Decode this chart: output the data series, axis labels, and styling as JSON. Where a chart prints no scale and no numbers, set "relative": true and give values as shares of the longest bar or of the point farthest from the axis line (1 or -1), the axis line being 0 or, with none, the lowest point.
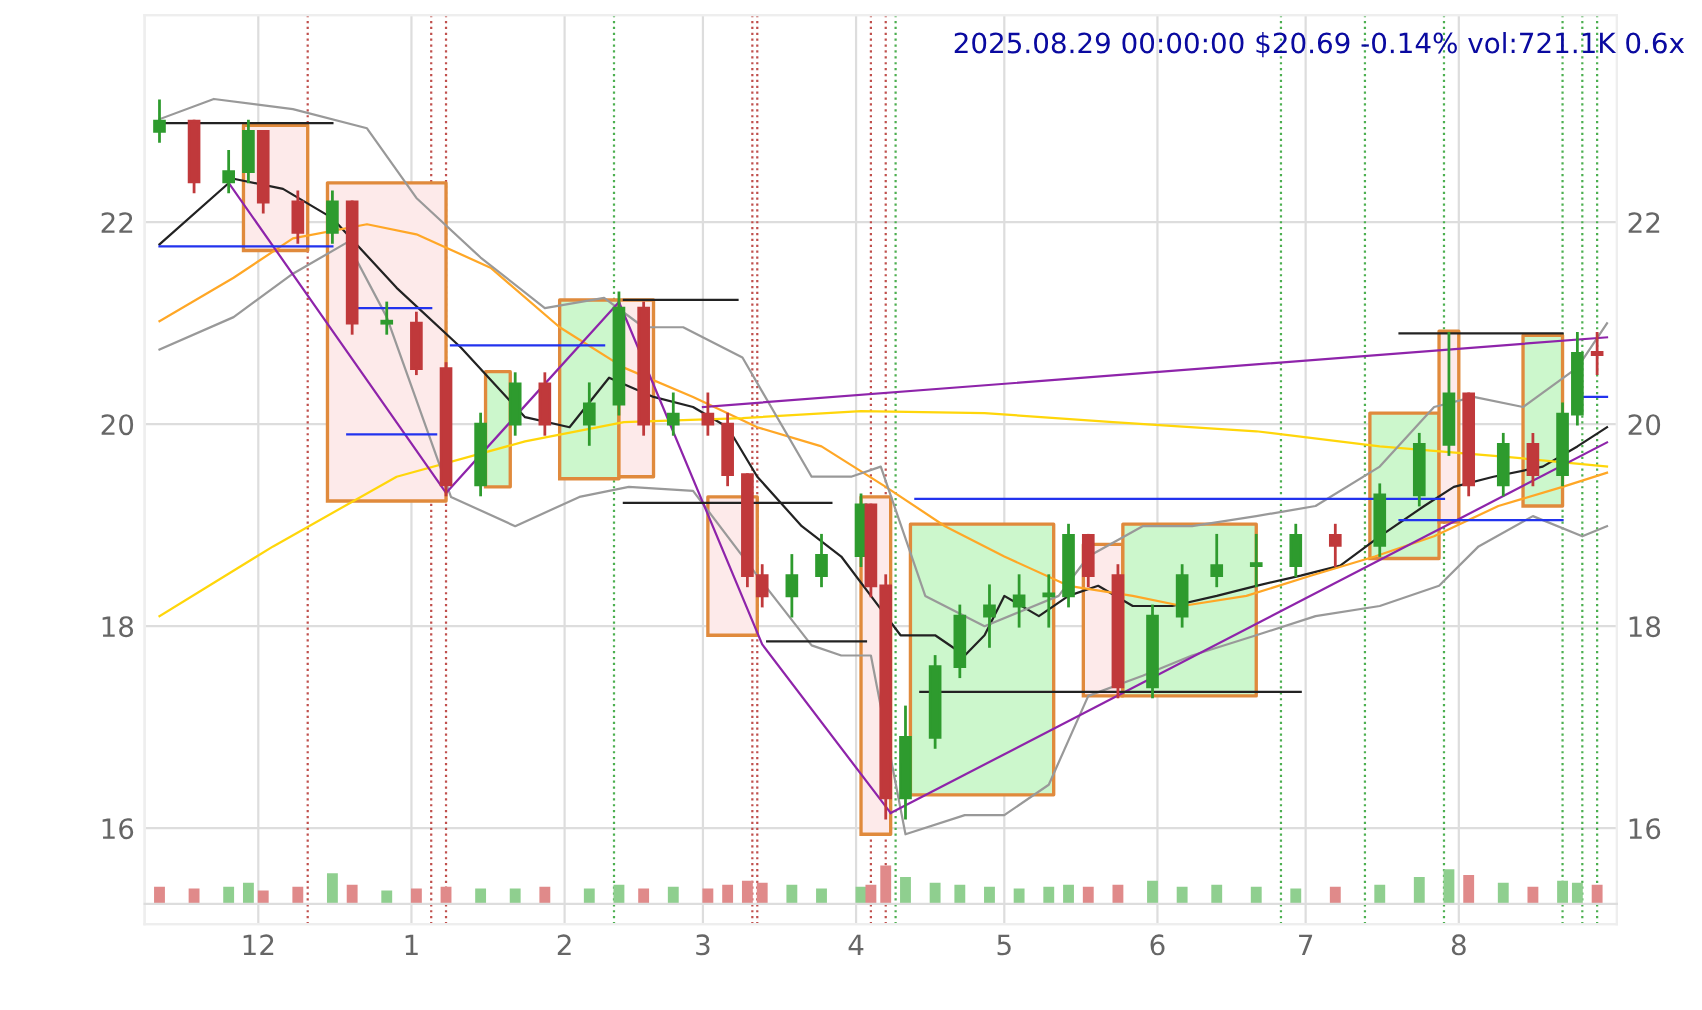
{
  "chart_data": [
    {
      "type": "candlestick",
      "title": "2025.08.29 00:00:00 $20.69 -0.14% vol:721.1K 0.6x",
      "x": [
        "2024-11-11",
        "2024-11-18",
        "2024-11-25",
        "2024-11-29",
        "2024-12-02",
        "2024-12-09",
        "2024-12-16",
        "2024-12-20",
        "2024-12-27",
        "2025-01-02",
        "2025-01-08",
        "2025-01-15",
        "2025-01-22",
        "2025-01-28",
        "2025-02-06",
        "2025-02-12",
        "2025-02-17",
        "2025-02-23",
        "2025-03-02",
        "2025-03-06",
        "2025-03-10",
        "2025-03-13",
        "2025-03-19",
        "2025-03-25",
        "2025-04-02",
        "2025-04-04",
        "2025-04-07",
        "2025-04-11",
        "2025-04-17",
        "2025-04-22",
        "2025-04-28",
        "2025-05-04",
        "2025-05-10",
        "2025-05-14",
        "2025-05-18",
        "2025-05-24",
        "2025-05-31",
        "2025-06-06",
        "2025-06-13",
        "2025-06-21",
        "2025-06-29",
        "2025-07-07",
        "2025-07-16",
        "2025-07-24",
        "2025-07-30",
        "2025-08-03",
        "2025-08-10",
        "2025-08-16",
        "2025-08-22",
        "2025-08-25",
        "2025-08-29"
      ],
      "ohlc": [
        [
          22.9,
          23.2,
          22.8,
          23.0
        ],
        [
          23.0,
          23.0,
          22.3,
          22.4
        ],
        [
          22.4,
          22.7,
          22.3,
          22.5
        ],
        [
          22.5,
          23.0,
          22.4,
          22.9
        ],
        [
          22.9,
          22.9,
          22.1,
          22.2
        ],
        [
          22.2,
          22.3,
          21.8,
          21.9
        ],
        [
          21.9,
          22.3,
          21.8,
          22.2
        ],
        [
          22.2,
          22.2,
          20.9,
          21.0
        ],
        [
          21.0,
          21.2,
          20.9,
          21.0
        ],
        [
          21.0,
          21.1,
          20.5,
          20.55
        ],
        [
          20.55,
          20.6,
          19.3,
          19.4
        ],
        [
          19.4,
          20.1,
          19.3,
          20.0
        ],
        [
          20.0,
          20.5,
          19.9,
          20.4
        ],
        [
          20.4,
          20.5,
          19.9,
          20.0
        ],
        [
          20.0,
          20.4,
          19.8,
          20.2
        ],
        [
          20.2,
          21.3,
          20.1,
          21.15
        ],
        [
          21.15,
          21.2,
          19.9,
          20.0
        ],
        [
          20.0,
          20.3,
          19.9,
          20.1
        ],
        [
          20.1,
          20.3,
          19.9,
          20.0
        ],
        [
          20.0,
          20.1,
          19.4,
          19.5
        ],
        [
          19.5,
          19.5,
          18.4,
          18.5
        ],
        [
          18.5,
          18.6,
          18.2,
          18.3
        ],
        [
          18.3,
          18.7,
          18.1,
          18.5
        ],
        [
          18.5,
          18.9,
          18.4,
          18.7
        ],
        [
          18.7,
          19.3,
          18.6,
          19.2
        ],
        [
          19.2,
          19.2,
          18.3,
          18.4
        ],
        [
          18.4,
          18.5,
          16.1,
          16.3
        ],
        [
          16.3,
          17.2,
          16.1,
          16.9
        ],
        [
          16.9,
          17.7,
          16.8,
          17.6
        ],
        [
          17.6,
          18.2,
          17.5,
          18.1
        ],
        [
          18.1,
          18.4,
          17.8,
          18.2
        ],
        [
          18.2,
          18.5,
          18.0,
          18.3
        ],
        [
          18.3,
          18.5,
          18.0,
          18.3
        ],
        [
          18.3,
          19.0,
          18.2,
          18.9
        ],
        [
          18.9,
          18.9,
          18.4,
          18.5
        ],
        [
          18.5,
          18.6,
          17.3,
          17.4
        ],
        [
          17.4,
          18.2,
          17.3,
          18.1
        ],
        [
          18.1,
          18.6,
          18.0,
          18.5
        ],
        [
          18.5,
          18.9,
          18.4,
          18.6
        ],
        [
          18.6,
          18.9,
          18.4,
          18.6
        ],
        [
          18.6,
          19.0,
          18.5,
          18.9
        ],
        [
          18.9,
          19.0,
          18.6,
          18.8
        ],
        [
          18.8,
          19.4,
          18.7,
          19.3
        ],
        [
          19.3,
          19.9,
          19.2,
          19.8
        ],
        [
          19.8,
          20.9,
          19.7,
          20.3
        ],
        [
          20.3,
          20.3,
          19.3,
          19.4
        ],
        [
          19.4,
          19.9,
          19.3,
          19.8
        ],
        [
          19.8,
          19.9,
          19.4,
          19.5
        ],
        [
          19.5,
          20.2,
          19.4,
          20.1
        ],
        [
          20.1,
          20.9,
          20.0,
          20.7
        ],
        [
          20.7,
          20.9,
          20.5,
          20.69
        ]
      ],
      "series": [
        {
          "type": "line",
          "color": "#222222",
          "x": [
            "2024-11-11",
            "2024-11-26",
            "2024-12-06",
            "2024-12-16",
            "2024-12-29",
            "2025-01-11",
            "2025-01-24",
            "2025-02-02",
            "2025-02-10",
            "2025-02-19",
            "2025-02-27",
            "2025-03-06",
            "2025-03-12",
            "2025-03-21",
            "2025-03-29",
            "2025-04-04",
            "2025-04-10",
            "2025-04-17",
            "2025-04-23",
            "2025-04-27",
            "2025-05-01",
            "2025-05-08",
            "2025-05-14",
            "2025-05-20",
            "2025-05-27",
            "2025-06-04",
            "2025-06-13",
            "2025-06-21",
            "2025-06-30",
            "2025-07-08",
            "2025-07-16",
            "2025-07-25",
            "2025-07-31",
            "2025-08-08",
            "2025-08-18",
            "2025-08-25",
            "2025-08-31"
          ],
          "values": [
            21.78,
            22.43,
            22.33,
            22.04,
            21.35,
            20.76,
            20.07,
            19.97,
            20.46,
            20.27,
            20.17,
            19.97,
            19.48,
            18.99,
            18.69,
            18.3,
            17.91,
            17.91,
            17.71,
            17.91,
            18.3,
            18.1,
            18.3,
            18.4,
            18.2,
            18.2,
            18.3,
            18.4,
            18.5,
            18.6,
            18.89,
            19.19,
            19.38,
            19.48,
            19.58,
            19.78,
            19.97
          ]
        },
        {
          "type": "line",
          "color": "#ffa726",
          "x": [
            "2024-11-11",
            "2024-11-26",
            "2024-12-08",
            "2024-12-23",
            "2025-01-02",
            "2025-01-17",
            "2025-01-31",
            "2025-02-13",
            "2025-02-27",
            "2025-03-12",
            "2025-03-25",
            "2025-04-07",
            "2025-04-19",
            "2025-05-01",
            "2025-05-14",
            "2025-05-27",
            "2025-06-06",
            "2025-06-19",
            "2025-07-02",
            "2025-07-15",
            "2025-07-27",
            "2025-08-09",
            "2025-08-22",
            "2025-08-31"
          ],
          "values": [
            21.02,
            21.45,
            21.84,
            21.98,
            21.88,
            21.55,
            20.96,
            20.56,
            20.27,
            19.97,
            19.78,
            19.38,
            18.99,
            18.69,
            18.4,
            18.3,
            18.2,
            18.3,
            18.5,
            18.69,
            18.89,
            19.19,
            19.38,
            19.52
          ]
        },
        {
          "type": "line",
          "color": "#ffd60a",
          "x": [
            "2024-11-11",
            "2024-12-04",
            "2024-12-29",
            "2025-01-24",
            "2025-02-13",
            "2025-03-09",
            "2025-04-02",
            "2025-04-27",
            "2025-05-23",
            "2025-06-21",
            "2025-07-16",
            "2025-08-10",
            "2025-08-31"
          ],
          "values": [
            18.1,
            18.79,
            19.48,
            19.83,
            20.02,
            20.06,
            20.13,
            20.11,
            20.02,
            19.93,
            19.78,
            19.68,
            19.58
          ]
        },
        {
          "type": "line",
          "color": "#999999",
          "x": [
            "2024-11-11",
            "2024-11-22",
            "2024-12-08",
            "2024-12-23",
            "2025-01-02",
            "2025-01-15",
            "2025-01-28",
            "2025-02-09",
            "2025-02-17",
            "2025-02-25",
            "2025-03-09",
            "2025-03-23",
            "2025-03-31",
            "2025-04-06",
            "2025-04-15",
            "2025-04-27",
            "2025-05-12",
            "2025-05-18",
            "2025-05-29",
            "2025-06-08",
            "2025-06-21",
            "2025-07-03",
            "2025-07-16",
            "2025-07-27",
            "2025-08-04",
            "2025-08-14",
            "2025-08-25",
            "2025-08-31"
          ],
          "values": [
            23.02,
            23.22,
            23.12,
            22.93,
            22.24,
            21.65,
            21.15,
            21.25,
            20.96,
            20.96,
            20.66,
            19.48,
            19.48,
            19.58,
            18.3,
            18.0,
            18.3,
            18.69,
            18.99,
            18.99,
            19.09,
            19.19,
            19.58,
            20.17,
            20.27,
            20.17,
            20.56,
            21.0
          ]
        },
        {
          "type": "line",
          "color": "#999999",
          "x": [
            "2024-11-11",
            "2024-11-26",
            "2024-12-08",
            "2024-12-19",
            "2024-12-27",
            "2025-01-09",
            "2025-01-22",
            "2025-02-04",
            "2025-02-14",
            "2025-02-27",
            "2025-03-12",
            "2025-03-23",
            "2025-03-29",
            "2025-04-04",
            "2025-04-11",
            "2025-04-23",
            "2025-05-01",
            "2025-05-10",
            "2025-05-18",
            "2025-05-29",
            "2025-06-08",
            "2025-06-21",
            "2025-07-03",
            "2025-07-16",
            "2025-07-28",
            "2025-08-05",
            "2025-08-16",
            "2025-08-26",
            "2025-08-31"
          ],
          "values": [
            20.74,
            21.06,
            21.49,
            21.8,
            21.06,
            19.28,
            18.99,
            19.28,
            19.38,
            19.34,
            18.5,
            17.81,
            17.71,
            17.71,
            15.94,
            16.13,
            16.13,
            16.43,
            17.31,
            17.51,
            17.71,
            17.91,
            18.1,
            18.2,
            18.4,
            18.79,
            19.09,
            18.89,
            18.99
          ]
        },
        {
          "type": "line",
          "color": "#8e24aa",
          "x": [
            "2024-11-25",
            "2025-01-08",
            "2025-02-12",
            "2025-03-13",
            "2025-04-08"
          ],
          "values": [
            22.39,
            19.32,
            21.21,
            17.82,
            16.15
          ]
        },
        {
          "type": "line",
          "color": "#8e24aa",
          "x": [
            "2025-04-08",
            "2025-08-31"
          ],
          "values": [
            16.15,
            19.82
          ]
        },
        {
          "type": "line",
          "color": "#8e24aa",
          "x": [
            "2025-03-01",
            "2025-08-31"
          ],
          "values": [
            20.17,
            20.86
          ]
        },
        {
          "type": "line",
          "color": "#2233ee",
          "x": [
            "2024-11-11",
            "2024-12-16"
          ],
          "values": [
            21.76,
            21.76
          ]
        },
        {
          "type": "line",
          "color": "#2233ee",
          "x": [
            "2024-12-20",
            "2025-01-05"
          ],
          "values": [
            21.15,
            21.15
          ]
        },
        {
          "type": "line",
          "color": "#2233ee",
          "x": [
            "2024-12-19",
            "2025-01-06"
          ],
          "values": [
            19.9,
            19.9
          ]
        },
        {
          "type": "line",
          "color": "#2233ee",
          "x": [
            "2025-01-09",
            "2025-02-09"
          ],
          "values": [
            20.78,
            20.78
          ]
        },
        {
          "type": "line",
          "color": "#2233ee",
          "x": [
            "2025-04-13",
            "2025-07-29"
          ],
          "values": [
            19.26,
            19.26
          ]
        },
        {
          "type": "line",
          "color": "#2233ee",
          "x": [
            "2025-07-20",
            "2025-08-22"
          ],
          "values": [
            19.05,
            19.05
          ]
        },
        {
          "type": "line",
          "color": "#2233ee",
          "x": [
            "2025-08-25",
            "2025-08-31"
          ],
          "values": [
            20.27,
            20.27
          ]
        },
        {
          "type": "line",
          "color": "#222222",
          "x": [
            "2024-11-11",
            "2024-12-16"
          ],
          "values": [
            22.98,
            22.98
          ]
        },
        {
          "type": "line",
          "color": "#222222",
          "x": [
            "2025-02-13",
            "2025-03-08"
          ],
          "values": [
            21.23,
            21.23
          ]
        },
        {
          "type": "line",
          "color": "#222222",
          "x": [
            "2025-02-13",
            "2025-03-27"
          ],
          "values": [
            19.22,
            19.22
          ]
        },
        {
          "type": "line",
          "color": "#222222",
          "x": [
            "2025-03-14",
            "2025-04-03"
          ],
          "values": [
            17.85,
            17.85
          ]
        },
        {
          "type": "line",
          "color": "#222222",
          "x": [
            "2025-04-14",
            "2025-06-30"
          ],
          "values": [
            17.35,
            17.35
          ]
        },
        {
          "type": "line",
          "color": "#222222",
          "x": [
            "2025-07-20",
            "2025-08-22"
          ],
          "values": [
            20.9,
            20.9
          ]
        },
        {
          "type": "area",
          "color": "#fdeaea",
          "x": [
            "2024-11-28",
            "2024-11-28",
            "2024-12-11",
            "2024-12-11",
            "2024-11-28"
          ],
          "values": [
            21.72,
            22.96,
            22.96,
            21.72,
            21.72
          ]
        },
        {
          "type": "area",
          "color": "#fdeaea",
          "x": [
            "2024-12-15",
            "2024-12-15",
            "2025-01-08",
            "2025-01-08",
            "2024-12-15"
          ],
          "values": [
            19.24,
            22.39,
            22.39,
            19.24,
            19.24
          ]
        },
        {
          "type": "area",
          "color": "#ccf7cc",
          "x": [
            "2025-01-16",
            "2025-01-16",
            "2025-01-21",
            "2025-01-21",
            "2025-01-16"
          ],
          "values": [
            19.38,
            20.52,
            20.52,
            19.38,
            19.38
          ]
        },
        {
          "type": "area",
          "color": "#ccf7cc",
          "x": [
            "2025-01-31",
            "2025-01-31",
            "2025-02-12",
            "2025-02-12",
            "2025-01-31"
          ],
          "values": [
            19.46,
            21.23,
            21.23,
            19.46,
            19.46
          ]
        },
        {
          "type": "area",
          "color": "#fdeaea",
          "x": [
            "2025-02-12",
            "2025-02-12",
            "2025-02-19",
            "2025-02-19",
            "2025-02-12"
          ],
          "values": [
            19.48,
            21.23,
            21.23,
            19.48,
            19.48
          ]
        },
        {
          "type": "area",
          "color": "#fdeaea",
          "x": [
            "2025-03-02",
            "2025-03-02",
            "2025-03-12",
            "2025-03-12",
            "2025-03-02"
          ],
          "values": [
            17.91,
            19.28,
            19.28,
            17.91,
            17.91
          ]
        },
        {
          "type": "area",
          "color": "#fdeaea",
          "x": [
            "2025-04-02",
            "2025-04-02",
            "2025-04-08",
            "2025-04-08",
            "2025-04-02"
          ],
          "values": [
            15.94,
            19.28,
            19.28,
            15.94,
            15.94
          ]
        },
        {
          "type": "area",
          "color": "#ccf7cc",
          "x": [
            "2025-04-12",
            "2025-04-12",
            "2025-05-11",
            "2025-05-11",
            "2025-04-12"
          ],
          "values": [
            16.33,
            19.01,
            19.01,
            16.33,
            16.33
          ]
        },
        {
          "type": "area",
          "color": "#fdeaea",
          "x": [
            "2025-05-17",
            "2025-05-17",
            "2025-05-25",
            "2025-05-25",
            "2025-05-17"
          ],
          "values": [
            17.31,
            18.81,
            18.81,
            17.31,
            17.31
          ]
        },
        {
          "type": "area",
          "color": "#ccf7cc",
          "x": [
            "2025-05-25",
            "2025-05-25",
            "2025-06-21",
            "2025-06-21",
            "2025-05-25"
          ],
          "values": [
            17.31,
            19.01,
            19.01,
            17.31,
            17.31
          ]
        },
        {
          "type": "area",
          "color": "#ccf7cc",
          "x": [
            "2025-07-14",
            "2025-07-14",
            "2025-07-28",
            "2025-07-28",
            "2025-07-14"
          ],
          "values": [
            18.67,
            20.11,
            20.11,
            18.67,
            18.67
          ]
        },
        {
          "type": "area",
          "color": "#fdeaea",
          "x": [
            "2025-07-28",
            "2025-07-28",
            "2025-08-01",
            "2025-08-01",
            "2025-07-28"
          ],
          "values": [
            19.03,
            20.92,
            20.92,
            19.03,
            19.03
          ]
        },
        {
          "type": "area",
          "color": "#ccf7cc",
          "x": [
            "2025-08-14",
            "2025-08-14",
            "2025-08-22",
            "2025-08-22",
            "2025-08-14"
          ],
          "values": [
            19.19,
            20.88,
            20.88,
            19.19,
            19.19
          ]
        }
      ],
      "ref_lines": [
        {
          "axis": "x",
          "value": "2024-12-11",
          "color": "#c0504d",
          "line_style": "dotted"
        },
        {
          "axis": "x",
          "value": "2025-01-05",
          "color": "#c0504d",
          "line_style": "dotted"
        },
        {
          "axis": "x",
          "value": "2025-01-08",
          "color": "#c0504d",
          "line_style": "dotted"
        },
        {
          "axis": "x",
          "value": "2025-02-11",
          "color": "#4caf50",
          "line_style": "dotted"
        },
        {
          "axis": "x",
          "value": "2025-03-11",
          "color": "#c0504d",
          "line_style": "dotted"
        },
        {
          "axis": "x",
          "value": "2025-03-12",
          "color": "#c0504d",
          "line_style": "dotted"
        },
        {
          "axis": "x",
          "value": "2025-04-04",
          "color": "#c0504d",
          "line_style": "dotted"
        },
        {
          "axis": "x",
          "value": "2025-04-07",
          "color": "#c0504d",
          "line_style": "dotted"
        },
        {
          "axis": "x",
          "value": "2025-04-09",
          "color": "#4caf50",
          "line_style": "dotted"
        },
        {
          "axis": "x",
          "value": "2025-06-26",
          "color": "#4caf50",
          "line_style": "dotted"
        },
        {
          "axis": "x",
          "value": "2025-07-13",
          "color": "#4caf50",
          "line_style": "dotted"
        },
        {
          "axis": "x",
          "value": "2025-07-29",
          "color": "#4caf50",
          "line_style": "dotted"
        },
        {
          "axis": "x",
          "value": "2025-08-22",
          "color": "#4caf50",
          "line_style": "dotted"
        },
        {
          "axis": "x",
          "value": "2025-08-26",
          "color": "#4caf50",
          "line_style": "dotted"
        },
        {
          "axis": "x",
          "value": "2025-08-29",
          "color": "#4caf50",
          "line_style": "dotted"
        }
      ],
      "xlim": [
        "2024-11-08",
        "2025-09-02"
      ],
      "xticks": [
        {
          "value": "2024-12-01",
          "label": "12"
        },
        {
          "value": "2025-01-01",
          "label": "1"
        },
        {
          "value": "2025-02-01",
          "label": "2"
        },
        {
          "value": "2025-03-01",
          "label": "3"
        },
        {
          "value": "2025-04-01",
          "label": "4"
        },
        {
          "value": "2025-05-01",
          "label": "5"
        },
        {
          "value": "2025-06-01",
          "label": "6"
        },
        {
          "value": "2025-07-01",
          "label": "7"
        },
        {
          "value": "2025-08-01",
          "label": "8"
        }
      ],
      "ylim": [
        15.05,
        24.05
      ],
      "yticks": [
        16,
        18,
        20,
        22
      ],
      "y2lim": [
        15.05,
        24.05
      ],
      "y2ticks": [
        16,
        18,
        20,
        22
      ],
      "grid": true
    },
    {
      "type": "bar",
      "relative": true,
      "tick_labels": false,
      "x": [
        "2024-11-11",
        "2024-11-18",
        "2024-11-25",
        "2024-11-29",
        "2024-12-02",
        "2024-12-09",
        "2024-12-16",
        "2024-12-20",
        "2024-12-27",
        "2025-01-02",
        "2025-01-08",
        "2025-01-15",
        "2025-01-22",
        "2025-01-28",
        "2025-02-06",
        "2025-02-12",
        "2025-02-17",
        "2025-02-23",
        "2025-03-02",
        "2025-03-06",
        "2025-03-10",
        "2025-03-13",
        "2025-03-19",
        "2025-03-25",
        "2025-04-02",
        "2025-04-04",
        "2025-04-07",
        "2025-04-11",
        "2025-04-17",
        "2025-04-22",
        "2025-04-28",
        "2025-05-04",
        "2025-05-10",
        "2025-05-14",
        "2025-05-18",
        "2025-05-24",
        "2025-05-31",
        "2025-06-06",
        "2025-06-13",
        "2025-06-21",
        "2025-06-29",
        "2025-07-07",
        "2025-07-16",
        "2025-07-24",
        "2025-07-30",
        "2025-08-03",
        "2025-08-10",
        "2025-08-16",
        "2025-08-22",
        "2025-08-25",
        "2025-08-29"
      ],
      "xlim": [
        "2024-11-08",
        "2025-09-02"
      ],
      "values": [
        0.45,
        0.4,
        0.45,
        0.55,
        0.35,
        0.45,
        0.8,
        0.5,
        0.35,
        0.4,
        0.45,
        0.4,
        0.4,
        0.45,
        0.4,
        0.5,
        0.4,
        0.45,
        0.4,
        0.5,
        0.6,
        0.55,
        0.5,
        0.4,
        0.45,
        0.5,
        1.0,
        0.7,
        0.55,
        0.5,
        0.45,
        0.4,
        0.45,
        0.5,
        0.45,
        0.5,
        0.6,
        0.45,
        0.5,
        0.45,
        0.4,
        0.45,
        0.5,
        0.7,
        0.9,
        0.75,
        0.55,
        0.45,
        0.6,
        0.55,
        0.5
      ],
      "colors": [
        "#e08a8a",
        "#e08a8a",
        "#8fcf8f",
        "#8fcf8f",
        "#e08a8a",
        "#e08a8a",
        "#8fcf8f",
        "#e08a8a",
        "#8fcf8f",
        "#e08a8a",
        "#e08a8a",
        "#8fcf8f",
        "#8fcf8f",
        "#e08a8a",
        "#8fcf8f",
        "#8fcf8f",
        "#e08a8a",
        "#8fcf8f",
        "#e08a8a",
        "#e08a8a",
        "#e08a8a",
        "#e08a8a",
        "#8fcf8f",
        "#8fcf8f",
        "#8fcf8f",
        "#e08a8a",
        "#e08a8a",
        "#8fcf8f",
        "#8fcf8f",
        "#8fcf8f",
        "#8fcf8f",
        "#8fcf8f",
        "#8fcf8f",
        "#8fcf8f",
        "#e08a8a",
        "#e08a8a",
        "#8fcf8f",
        "#8fcf8f",
        "#8fcf8f",
        "#8fcf8f",
        "#8fcf8f",
        "#e08a8a",
        "#8fcf8f",
        "#8fcf8f",
        "#8fcf8f",
        "#e08a8a",
        "#8fcf8f",
        "#e08a8a",
        "#8fcf8f",
        "#8fcf8f",
        "#e08a8a"
      ]
    }
  ]
}
